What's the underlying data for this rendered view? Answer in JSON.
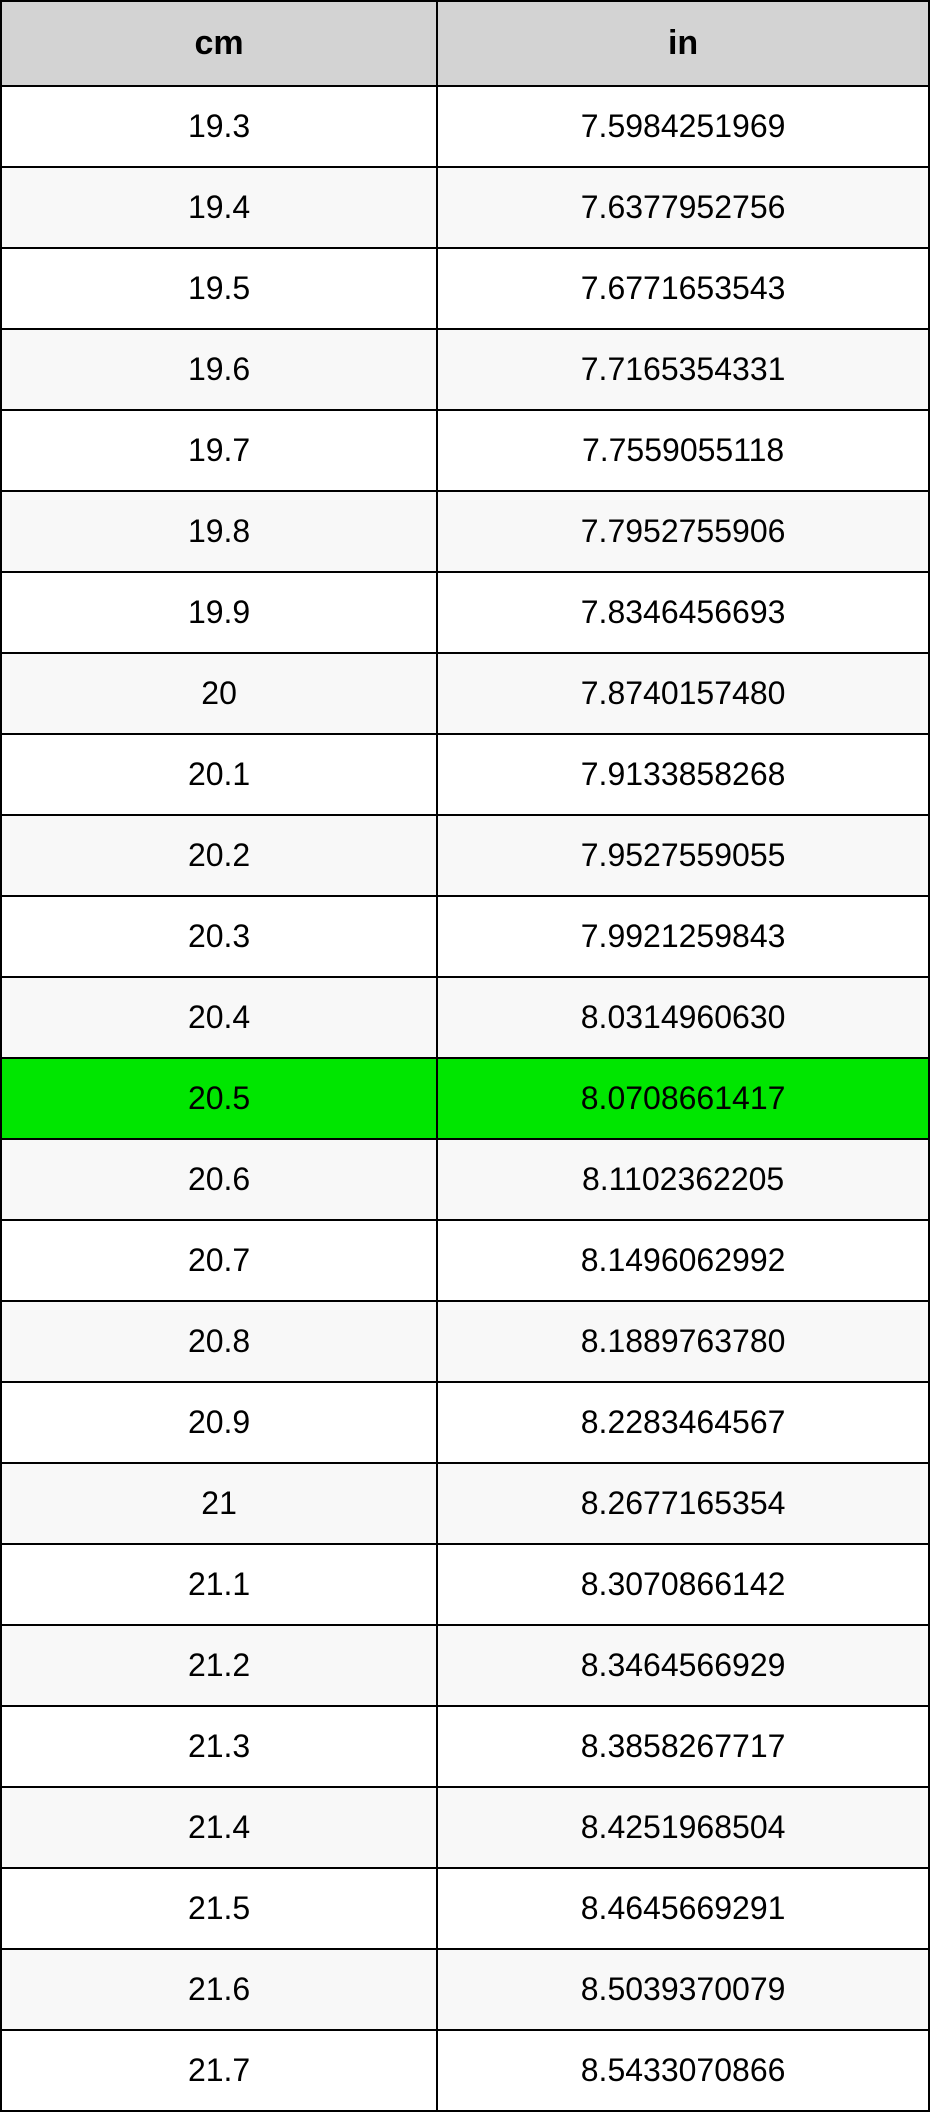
{
  "table": {
    "type": "table",
    "header_bg": "#d3d3d3",
    "row_bg_even": "#ffffff",
    "row_bg_odd": "#f8f8f8",
    "highlight_bg": "#00e600",
    "border_color": "#000000",
    "text_color": "#000000",
    "header_fontsize": 34,
    "cell_fontsize": 32,
    "columns": [
      {
        "key": "cm",
        "label": "cm",
        "width_pct": 47
      },
      {
        "key": "in",
        "label": "in",
        "width_pct": 53
      }
    ],
    "highlight_index": 12,
    "rows": [
      {
        "cm": "19.3",
        "in": "7.5984251969"
      },
      {
        "cm": "19.4",
        "in": "7.6377952756"
      },
      {
        "cm": "19.5",
        "in": "7.6771653543"
      },
      {
        "cm": "19.6",
        "in": "7.7165354331"
      },
      {
        "cm": "19.7",
        "in": "7.7559055118"
      },
      {
        "cm": "19.8",
        "in": "7.7952755906"
      },
      {
        "cm": "19.9",
        "in": "7.8346456693"
      },
      {
        "cm": "20",
        "in": "7.8740157480"
      },
      {
        "cm": "20.1",
        "in": "7.9133858268"
      },
      {
        "cm": "20.2",
        "in": "7.9527559055"
      },
      {
        "cm": "20.3",
        "in": "7.9921259843"
      },
      {
        "cm": "20.4",
        "in": "8.0314960630"
      },
      {
        "cm": "20.5",
        "in": "8.0708661417"
      },
      {
        "cm": "20.6",
        "in": "8.1102362205"
      },
      {
        "cm": "20.7",
        "in": "8.1496062992"
      },
      {
        "cm": "20.8",
        "in": "8.1889763780"
      },
      {
        "cm": "20.9",
        "in": "8.2283464567"
      },
      {
        "cm": "21",
        "in": "8.2677165354"
      },
      {
        "cm": "21.1",
        "in": "8.3070866142"
      },
      {
        "cm": "21.2",
        "in": "8.3464566929"
      },
      {
        "cm": "21.3",
        "in": "8.3858267717"
      },
      {
        "cm": "21.4",
        "in": "8.4251968504"
      },
      {
        "cm": "21.5",
        "in": "8.4645669291"
      },
      {
        "cm": "21.6",
        "in": "8.5039370079"
      },
      {
        "cm": "21.7",
        "in": "8.5433070866"
      }
    ]
  }
}
